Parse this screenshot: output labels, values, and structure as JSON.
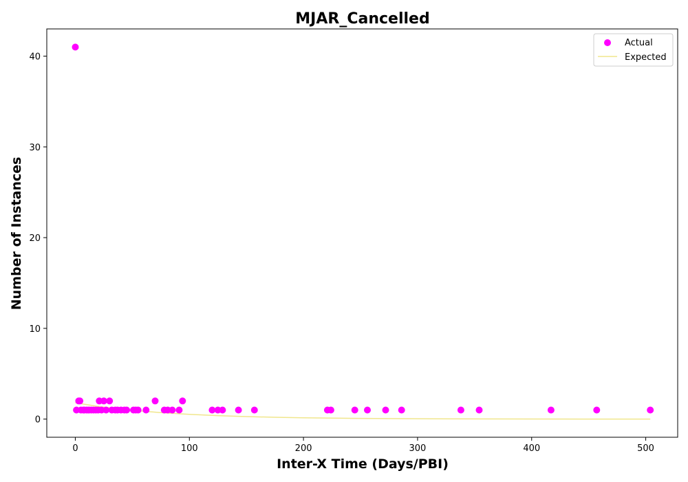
{
  "chart_data": {
    "type": "scatter",
    "title": "MJAR_Cancelled",
    "xlabel": "Inter-X Time (Days/PBI)",
    "ylabel": "Number of Instances",
    "xlim": [
      -25,
      528
    ],
    "ylim": [
      -2,
      43
    ],
    "xticks": [
      0,
      100,
      200,
      300,
      400,
      500
    ],
    "yticks": [
      0,
      10,
      20,
      30,
      40
    ],
    "grid": false,
    "legend_position": "top-right",
    "series": [
      {
        "name": "Actual",
        "kind": "points",
        "color": "#ff00ff",
        "points": [
          [
            0,
            41
          ],
          [
            1,
            1
          ],
          [
            3,
            2
          ],
          [
            4,
            2
          ],
          [
            5,
            1
          ],
          [
            7,
            1
          ],
          [
            8,
            1
          ],
          [
            10,
            1
          ],
          [
            12,
            1
          ],
          [
            14,
            1
          ],
          [
            16,
            1
          ],
          [
            18,
            1
          ],
          [
            20,
            1
          ],
          [
            21,
            2
          ],
          [
            23,
            1
          ],
          [
            25,
            2
          ],
          [
            27,
            1
          ],
          [
            30,
            2
          ],
          [
            32,
            1
          ],
          [
            35,
            1
          ],
          [
            37,
            1
          ],
          [
            40,
            1
          ],
          [
            43,
            1
          ],
          [
            45,
            1
          ],
          [
            51,
            1
          ],
          [
            53,
            1
          ],
          [
            55,
            1
          ],
          [
            62,
            1
          ],
          [
            70,
            2
          ],
          [
            78,
            1
          ],
          [
            81,
            1
          ],
          [
            85,
            1
          ],
          [
            91,
            1
          ],
          [
            94,
            2
          ],
          [
            120,
            1
          ],
          [
            125,
            1
          ],
          [
            129,
            1
          ],
          [
            143,
            1
          ],
          [
            157,
            1
          ],
          [
            221,
            1
          ],
          [
            224,
            1
          ],
          [
            245,
            1
          ],
          [
            256,
            1
          ],
          [
            272,
            1
          ],
          [
            286,
            1
          ],
          [
            338,
            1
          ],
          [
            354,
            1
          ],
          [
            417,
            1
          ],
          [
            457,
            1
          ],
          [
            504,
            1
          ]
        ]
      },
      {
        "name": "Expected",
        "kind": "line",
        "color": "#f0e68c",
        "points": [
          [
            0,
            1.8
          ],
          [
            10,
            1.6
          ],
          [
            20,
            1.4
          ],
          [
            30,
            1.25
          ],
          [
            40,
            1.1
          ],
          [
            50,
            0.97
          ],
          [
            75,
            0.72
          ],
          [
            100,
            0.52
          ],
          [
            125,
            0.38
          ],
          [
            150,
            0.28
          ],
          [
            175,
            0.2
          ],
          [
            200,
            0.14
          ],
          [
            250,
            0.08
          ],
          [
            300,
            0.04
          ],
          [
            350,
            0.02
          ],
          [
            400,
            0.01
          ],
          [
            450,
            0.005
          ],
          [
            504,
            0.002
          ]
        ]
      }
    ]
  }
}
